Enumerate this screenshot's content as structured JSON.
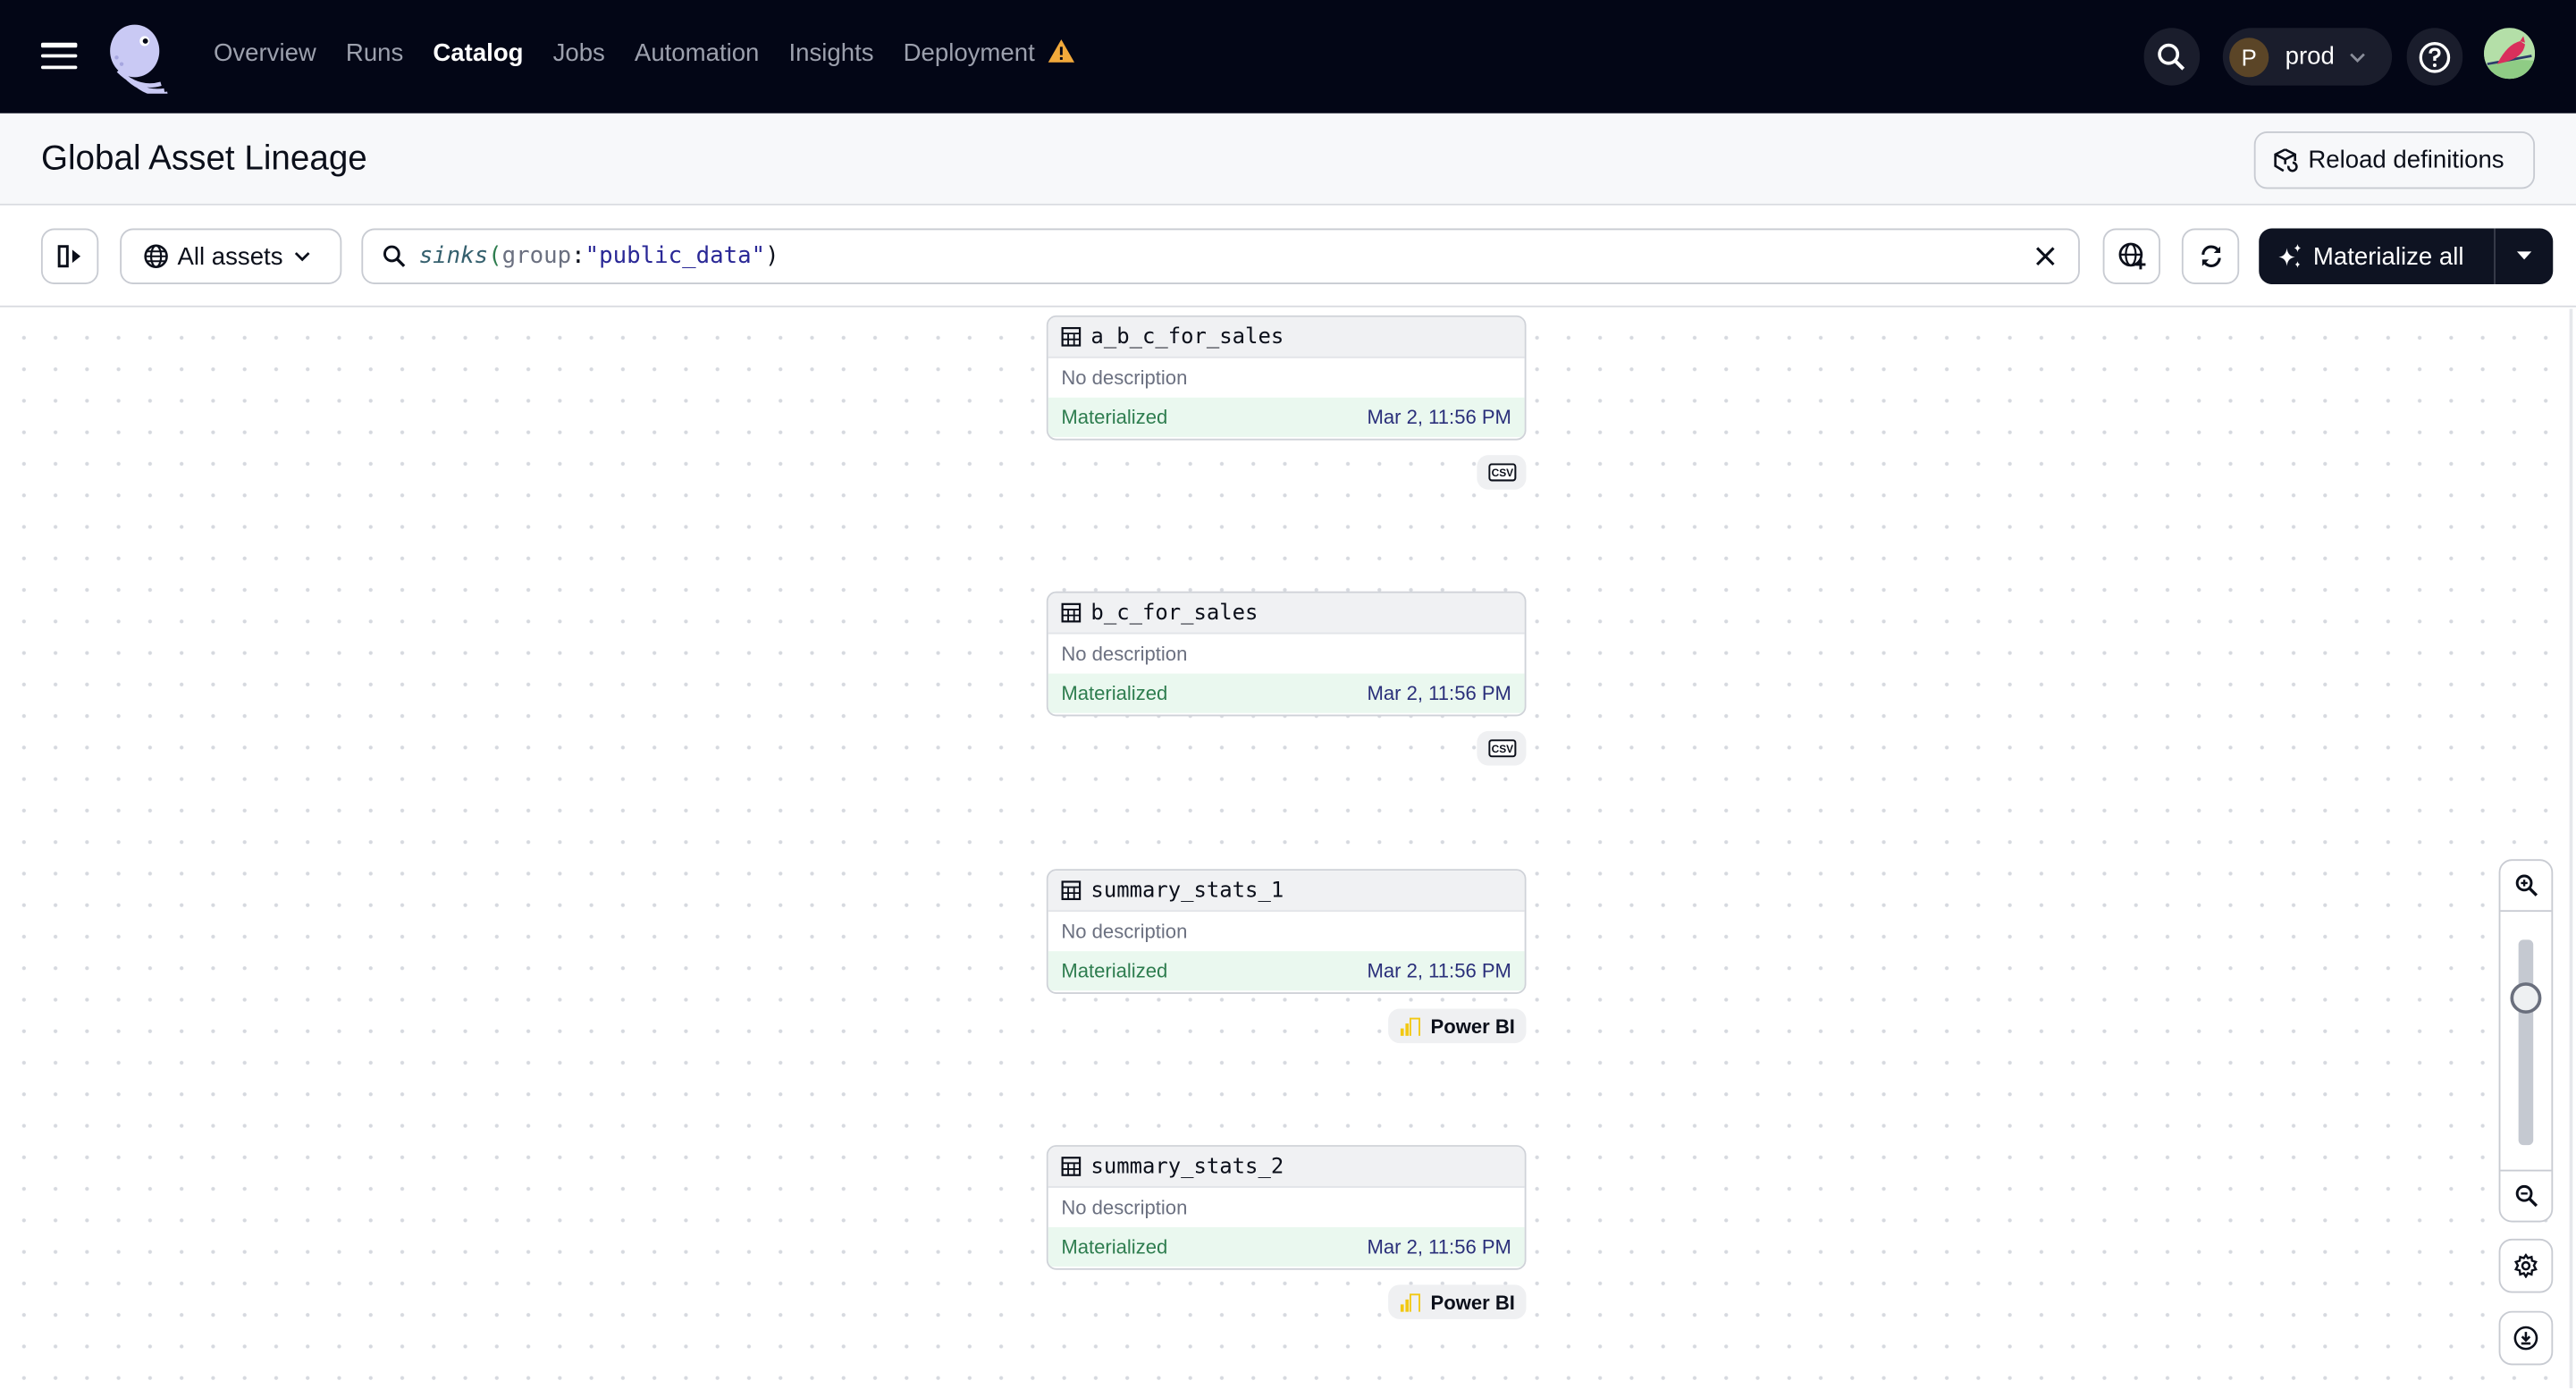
{
  "nav": {
    "items": [
      {
        "label": "Overview"
      },
      {
        "label": "Runs"
      },
      {
        "label": "Catalog",
        "active": true
      },
      {
        "label": "Jobs"
      },
      {
        "label": "Automation"
      },
      {
        "label": "Insights"
      },
      {
        "label": "Deployment",
        "warning": true
      }
    ],
    "deployment_initial": "P",
    "deployment_name": "prod"
  },
  "page": {
    "title": "Global Asset Lineage",
    "reload_label": "Reload definitions"
  },
  "toolbar": {
    "asset_filter": "All assets",
    "query": {
      "fn": "sinks",
      "open": "(",
      "key": "group",
      "colon": ":",
      "value": "\"public_data\"",
      "close": ")"
    },
    "materialize_label": "Materialize all"
  },
  "nodes": [
    {
      "name": "a_b_c_for_sales",
      "description": "No description",
      "status": "Materialized",
      "timestamp": "Mar 2, 11:56 PM",
      "kind": "CSV"
    },
    {
      "name": "b_c_for_sales",
      "description": "No description",
      "status": "Materialized",
      "timestamp": "Mar 2, 11:56 PM",
      "kind": "CSV"
    },
    {
      "name": "summary_stats_1",
      "description": "No description",
      "status": "Materialized",
      "timestamp": "Mar 2, 11:56 PM",
      "kind": "Power BI"
    },
    {
      "name": "summary_stats_2",
      "description": "No description",
      "status": "Materialized",
      "timestamp": "Mar 2, 11:56 PM",
      "kind": "Power BI"
    }
  ],
  "zoom_level_fraction": 0.72,
  "colors": {
    "topbar": "#030616",
    "accent_warning": "#f2a93b",
    "materialized_bg": "#eaf8ef",
    "materialized_text": "#2e7d4f",
    "powerbi": "#f2c811"
  }
}
